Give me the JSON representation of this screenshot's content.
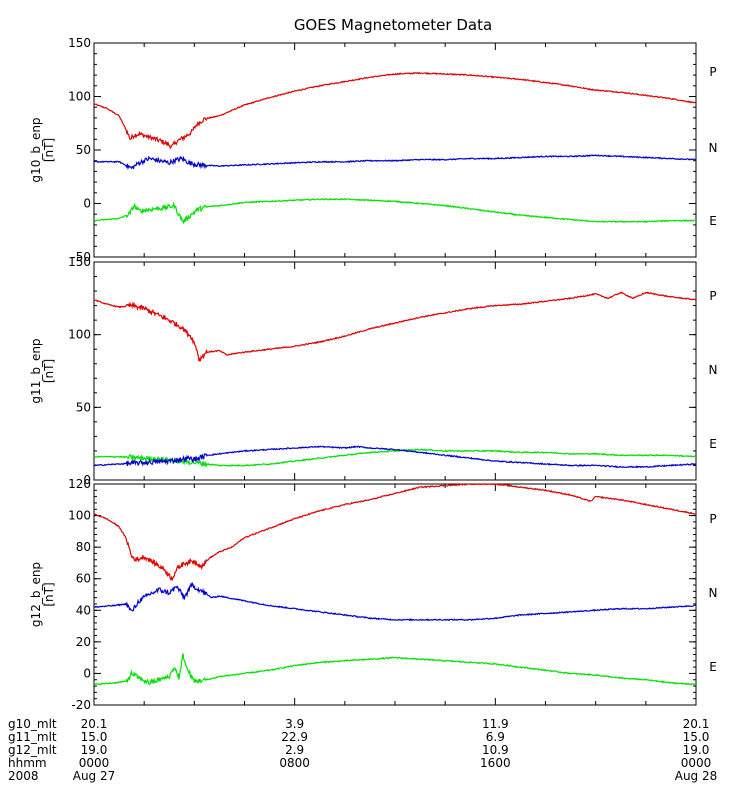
{
  "title": "GOES Magnetometer Data",
  "colors": {
    "P": "#e00000",
    "N": "#00e000",
    "E": "#0000d0",
    "frame": "#000000",
    "background": "#ffffff"
  },
  "chart_data": [
    {
      "type": "line",
      "ylabel": "g10_b_enp",
      "yunit": "[nT]",
      "ylim": [
        -50,
        150
      ],
      "yticks": [
        "-50",
        "0",
        "50",
        "100",
        "150"
      ],
      "xlim": [
        0,
        24
      ],
      "x_unit": "hours from 2008 Aug 27 0000",
      "legend": [
        "P",
        "N",
        "E"
      ],
      "series": [
        {
          "name": "P",
          "color": "#e00000",
          "x": [
            0.0,
            0.5,
            1.0,
            1.3,
            1.45,
            1.6,
            1.8,
            2.2,
            2.6,
            2.9,
            3.1,
            3.3,
            3.6,
            3.9,
            4.1,
            4.4,
            5.0,
            6.0,
            7.0,
            8.0,
            9.0,
            10.0,
            11.0,
            12.0,
            13.0,
            14.0,
            15.0,
            16.0,
            17.0,
            18.0,
            19.0,
            19.7,
            20.0,
            21.0,
            22.0,
            23.0,
            24.0
          ],
          "y": [
            93,
            89,
            82,
            68,
            60,
            64,
            65,
            62,
            59,
            56,
            53,
            58,
            62,
            67,
            74,
            79,
            82,
            92,
            99,
            105,
            110,
            114,
            118,
            121,
            122,
            121,
            120,
            118,
            116,
            113,
            110,
            107,
            106,
            104,
            101,
            98,
            94
          ]
        },
        {
          "name": "N",
          "color": "#0000d0",
          "x": [
            0.0,
            1.0,
            1.5,
            1.8,
            2.2,
            2.6,
            3.0,
            3.2,
            3.5,
            3.8,
            4.2,
            5.0,
            6.0,
            7.0,
            8.0,
            9.0,
            10.0,
            11.0,
            12.0,
            13.0,
            14.0,
            15.0,
            16.0,
            17.0,
            18.0,
            19.0,
            20.0,
            21.0,
            22.0,
            23.0,
            24.0
          ],
          "y": [
            39,
            39,
            33,
            38,
            42,
            40,
            38,
            40,
            42,
            38,
            36,
            35,
            36,
            37,
            38,
            39,
            39,
            40,
            40,
            41,
            41,
            42,
            42,
            43,
            44,
            44,
            45,
            44,
            43,
            42,
            41
          ]
        },
        {
          "name": "E",
          "color": "#00e000",
          "x": [
            0.0,
            1.0,
            1.4,
            1.6,
            1.8,
            2.4,
            2.8,
            3.2,
            3.4,
            3.55,
            3.7,
            4.1,
            4.5,
            5.0,
            6.0,
            7.0,
            8.0,
            9.0,
            10.0,
            11.0,
            12.0,
            13.0,
            14.0,
            15.0,
            16.0,
            17.0,
            18.0,
            19.0,
            20.0,
            21.0,
            22.0,
            23.0,
            24.0
          ],
          "y": [
            -16,
            -14,
            -10,
            -2,
            -7,
            -5,
            -4,
            -2,
            -11,
            -17,
            -14,
            -6,
            -3,
            -2,
            1,
            2,
            3,
            4,
            4,
            3,
            2,
            0,
            -2,
            -5,
            -8,
            -11,
            -13,
            -15,
            -17,
            -17,
            -17,
            -16,
            -16
          ]
        }
      ]
    },
    {
      "type": "line",
      "ylabel": "g11_b_enp",
      "yunit": "[nT]",
      "ylim": [
        0,
        150
      ],
      "yticks": [
        "0",
        "50",
        "100",
        "150"
      ],
      "xlim": [
        0,
        24
      ],
      "x_unit": "hours from 2008 Aug 27 0000",
      "legend": [
        "P",
        "N",
        "E"
      ],
      "series": [
        {
          "name": "P",
          "color": "#e00000",
          "x": [
            0.0,
            0.5,
            1.0,
            1.5,
            2.0,
            2.5,
            3.0,
            3.5,
            3.9,
            4.1,
            4.2,
            4.3,
            4.5,
            5.0,
            5.3,
            5.6,
            6.0,
            7.0,
            8.0,
            9.0,
            10.0,
            11.0,
            12.0,
            13.0,
            14.0,
            15.0,
            16.0,
            17.0,
            18.0,
            19.0,
            20.0,
            20.5,
            21.0,
            21.5,
            22.0,
            23.0,
            24.0
          ],
          "y": [
            124,
            121,
            119,
            120,
            118,
            114,
            110,
            105,
            98,
            90,
            82,
            85,
            88,
            89,
            86,
            87,
            88,
            90,
            92,
            95,
            99,
            104,
            108,
            112,
            115,
            118,
            120,
            121,
            123,
            125,
            128,
            125,
            129,
            125,
            129,
            126,
            124
          ]
        },
        {
          "name": "N",
          "color": "#00e000",
          "x": [
            0.0,
            1.0,
            2.0,
            3.0,
            4.0,
            4.5,
            5.0,
            6.0,
            7.0,
            8.0,
            9.0,
            10.0,
            11.0,
            12.0,
            13.0,
            14.0,
            15.0,
            16.0,
            17.0,
            18.0,
            19.0,
            20.0,
            21.0,
            22.0,
            23.0,
            24.0
          ],
          "y": [
            16,
            16,
            15,
            14,
            12,
            11,
            10,
            10,
            11,
            13,
            15,
            17,
            19,
            20,
            21,
            20,
            20,
            20,
            19,
            19,
            18,
            18,
            17,
            17,
            17,
            16
          ]
        },
        {
          "name": "E",
          "color": "#0000d0",
          "x": [
            0.0,
            1.0,
            2.0,
            3.0,
            3.8,
            4.0,
            4.5,
            5.0,
            6.0,
            7.0,
            8.0,
            9.0,
            10.0,
            10.5,
            11.0,
            12.0,
            13.0,
            14.0,
            15.0,
            16.0,
            17.0,
            18.0,
            19.0,
            20.0,
            21.0,
            22.0,
            23.0,
            24.0
          ],
          "y": [
            10,
            11,
            12,
            13,
            15,
            14,
            17,
            18,
            20,
            21,
            22,
            23,
            22,
            23,
            22,
            21,
            19,
            17,
            15,
            13,
            12,
            11,
            10,
            10,
            9,
            9,
            10,
            11
          ]
        }
      ]
    },
    {
      "type": "line",
      "ylabel": "g12_b_enp",
      "yunit": "[nT]",
      "ylim": [
        -20,
        120
      ],
      "yticks": [
        "-20",
        "0",
        "20",
        "40",
        "60",
        "80",
        "100",
        "120"
      ],
      "xlim": [
        0,
        24
      ],
      "x_unit": "hours from 2008 Aug 27 0000",
      "legend": [
        "P",
        "N",
        "E"
      ],
      "series": [
        {
          "name": "P",
          "color": "#e00000",
          "x": [
            0.0,
            0.5,
            1.0,
            1.3,
            1.5,
            1.7,
            2.0,
            2.4,
            2.8,
            3.1,
            3.3,
            3.6,
            4.0,
            4.3,
            4.6,
            5.0,
            5.5,
            6.0,
            7.0,
            8.0,
            9.0,
            10.0,
            11.0,
            12.0,
            13.0,
            14.0,
            15.0,
            16.0,
            17.0,
            18.0,
            19.0,
            19.8,
            20.0,
            21.0,
            22.0,
            23.0,
            24.0
          ],
          "y": [
            101,
            98,
            93,
            85,
            74,
            72,
            74,
            70,
            66,
            60,
            66,
            70,
            71,
            68,
            73,
            77,
            80,
            86,
            92,
            98,
            103,
            107,
            110,
            114,
            118,
            119,
            120,
            120,
            118,
            116,
            113,
            109,
            112,
            110,
            107,
            104,
            101
          ]
        },
        {
          "name": "N",
          "color": "#0000d0",
          "x": [
            0.0,
            0.8,
            1.3,
            1.5,
            1.8,
            2.2,
            2.6,
            3.0,
            3.3,
            3.6,
            3.9,
            4.3,
            4.7,
            5.0,
            6.0,
            7.0,
            8.0,
            9.0,
            10.0,
            11.0,
            12.0,
            13.0,
            14.0,
            15.0,
            16.0,
            17.0,
            18.0,
            19.0,
            20.0,
            21.0,
            22.0,
            23.0,
            24.0
          ],
          "y": [
            42,
            43,
            44,
            39,
            46,
            50,
            53,
            51,
            55,
            48,
            56,
            52,
            48,
            49,
            46,
            43,
            41,
            39,
            37,
            35,
            34,
            34,
            34,
            34,
            35,
            37,
            38,
            39,
            40,
            41,
            41,
            42,
            43
          ]
        },
        {
          "name": "E",
          "color": "#00e000",
          "x": [
            0.0,
            0.8,
            1.3,
            1.5,
            1.8,
            2.2,
            2.6,
            3.0,
            3.2,
            3.4,
            3.55,
            3.7,
            4.0,
            4.5,
            5.0,
            6.0,
            7.0,
            8.0,
            9.0,
            10.0,
            11.0,
            12.0,
            13.0,
            14.0,
            15.0,
            16.0,
            17.0,
            18.0,
            19.0,
            20.0,
            21.0,
            22.0,
            23.0,
            24.0
          ],
          "y": [
            -7,
            -6,
            -5,
            0,
            -3,
            -6,
            -4,
            -2,
            4,
            -3,
            12,
            3,
            -5,
            -4,
            -2,
            0,
            2,
            5,
            7,
            8,
            9,
            10,
            9,
            8,
            7,
            6,
            4,
            2,
            0,
            -1,
            -3,
            -4,
            -6,
            -7
          ]
        }
      ]
    }
  ],
  "legend_labels": {
    "P": "P",
    "N": "N",
    "E": "E"
  },
  "footer": {
    "row_labels": [
      "g10_mlt",
      "g11_mlt",
      "g12_mlt",
      "hhmm",
      "2008"
    ],
    "columns": [
      {
        "hour": 0,
        "values": [
          "20.1",
          "15.0",
          "19.0",
          "0000",
          "Aug 27"
        ]
      },
      {
        "hour": 8,
        "values": [
          "3.9",
          "22.9",
          "2.9",
          "0800",
          ""
        ]
      },
      {
        "hour": 16,
        "values": [
          "11.9",
          "6.9",
          "10.9",
          "1600",
          ""
        ]
      },
      {
        "hour": 24,
        "values": [
          "20.1",
          "15.0",
          "19.0",
          "0000",
          "Aug 28"
        ]
      }
    ]
  }
}
